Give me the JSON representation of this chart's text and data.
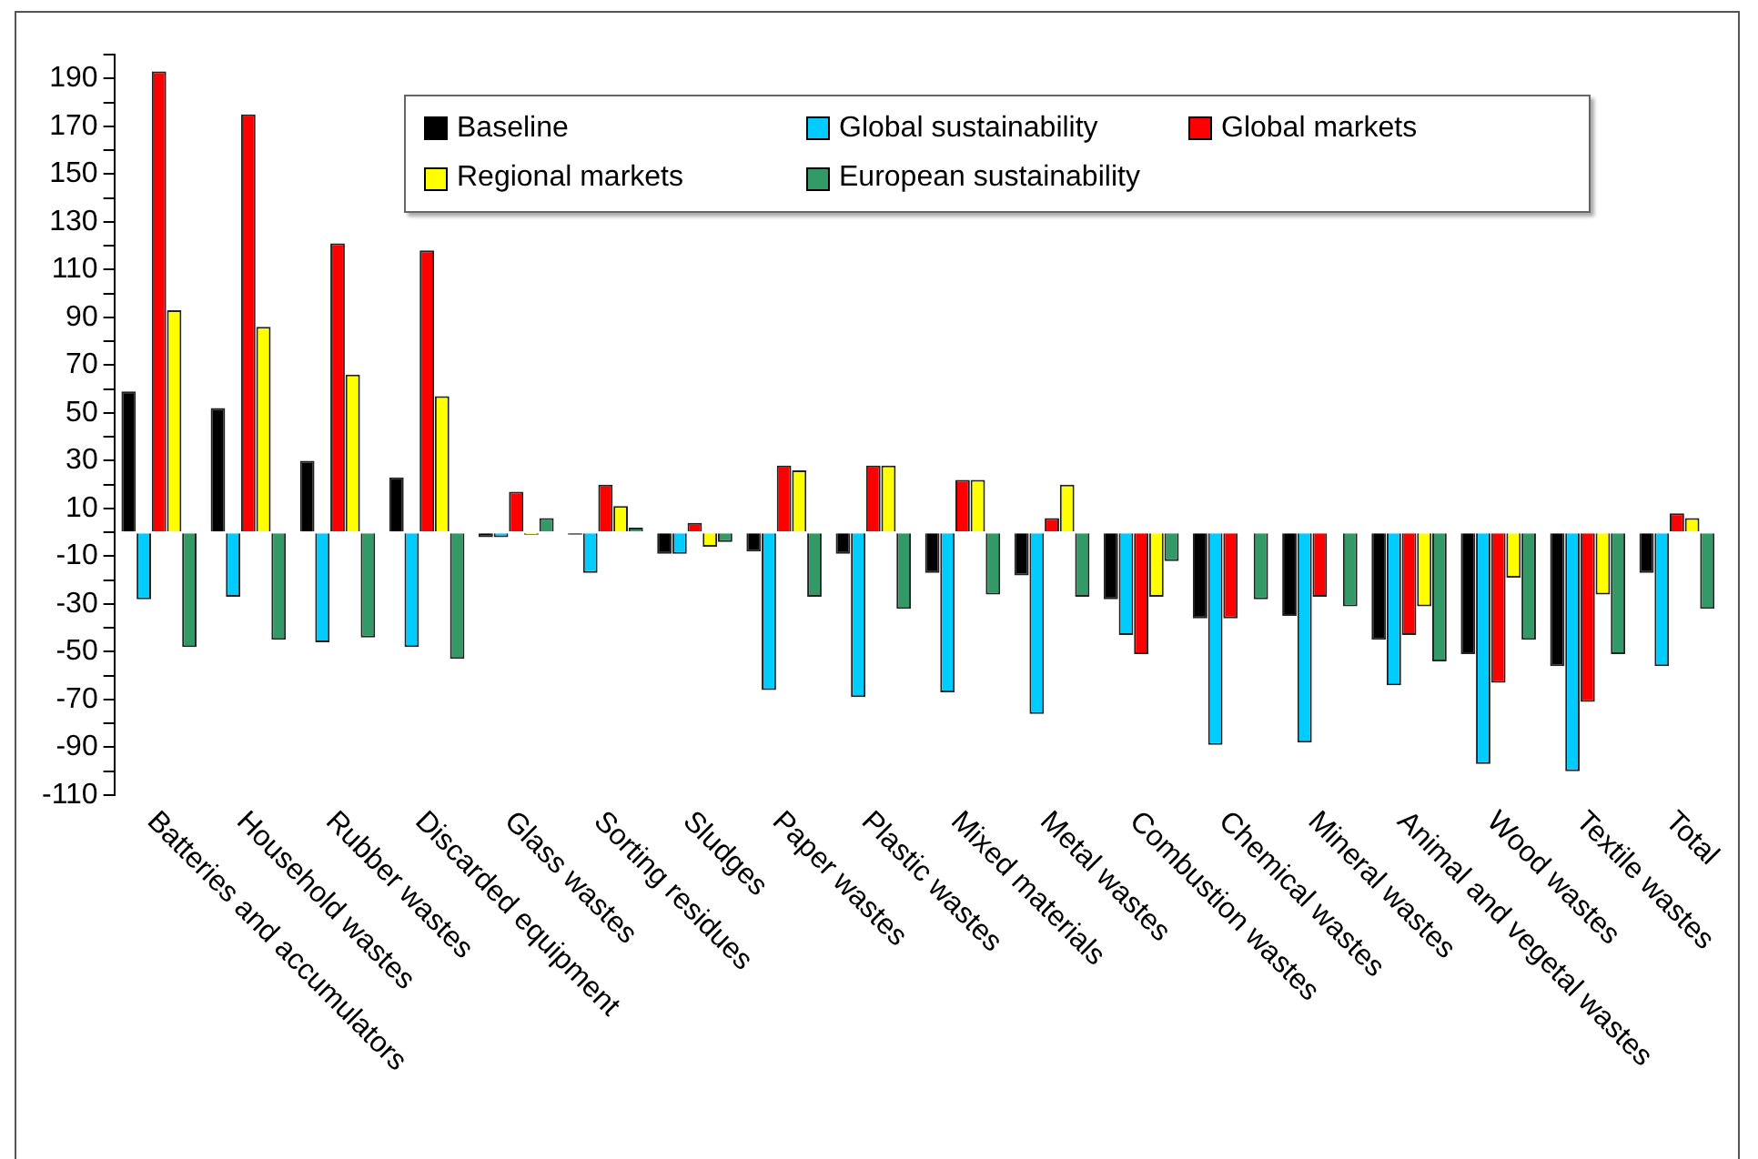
{
  "chart_data": {
    "type": "bar",
    "categories": [
      "Batteries and accumulators",
      "Household wastes",
      "Rubber wastes",
      "Discarded equipment",
      "Glass wastes",
      "Sorting residues",
      "Sludges",
      "Paper wastes",
      "Plastic wastes",
      "Mixed materials",
      "Metal wastes",
      "Combustion wastes",
      "Chemical wastes",
      "Mineral wastes",
      "Animal and vegetal wastes",
      "Wood wastes",
      "Textile wastes",
      "Total"
    ],
    "series": [
      {
        "name": "Baseline",
        "color": "#000000",
        "values": [
          59,
          52,
          30,
          23,
          -2,
          -1,
          -9,
          -8,
          -9,
          -17,
          -18,
          -28,
          -36,
          -35,
          -45,
          -51,
          -56,
          -17
        ]
      },
      {
        "name": "Global sustainability",
        "color": "#00ccff",
        "values": [
          -28,
          -27,
          -46,
          -48,
          -2,
          -17,
          -9,
          -66,
          -69,
          -67,
          -76,
          -43,
          -89,
          -88,
          -64,
          -97,
          -100,
          -56
        ]
      },
      {
        "name": "Global markets",
        "color": "#ff0000",
        "values": [
          193,
          175,
          121,
          118,
          17,
          20,
          4,
          28,
          28,
          22,
          6,
          -51,
          -36,
          -27,
          -43,
          -63,
          -71,
          8
        ]
      },
      {
        "name": "Regional markets",
        "color": "#ffff00",
        "values": [
          93,
          86,
          66,
          57,
          -1,
          11,
          -6,
          26,
          28,
          22,
          20,
          -27,
          null,
          null,
          -31,
          -19,
          -26,
          6
        ]
      },
      {
        "name": "European sustainability",
        "color": "#339966",
        "values": [
          -48,
          -45,
          -44,
          -53,
          6,
          2,
          -4,
          -27,
          -32,
          -26,
          -27,
          -12,
          -28,
          -31,
          -54,
          -45,
          -51,
          -32
        ]
      }
    ],
    "ylim": [
      -110,
      200
    ],
    "yticks": [
      -110,
      {
        "value": -100,
        "label": null
      },
      -90,
      {
        "value": -80,
        "label": null
      },
      -70,
      {
        "value": -60,
        "label": null
      },
      -50,
      {
        "value": -40,
        "label": null
      },
      -30,
      {
        "value": -20,
        "label": null
      },
      -10,
      {
        "value": 0,
        "label": null
      },
      10,
      {
        "value": 20,
        "label": null
      },
      30,
      {
        "value": 40,
        "label": null
      },
      50,
      {
        "value": 60,
        "label": null
      },
      70,
      {
        "value": 80,
        "label": null
      },
      90,
      {
        "value": 100,
        "label": null
      },
      110,
      {
        "value": 120,
        "label": null
      },
      130,
      {
        "value": 140,
        "label": null
      },
      150,
      {
        "value": 160,
        "label": null
      },
      170,
      {
        "value": 180,
        "label": null
      },
      190,
      {
        "value": 200,
        "label": null
      }
    ],
    "grid": false,
    "legend": "top right"
  }
}
